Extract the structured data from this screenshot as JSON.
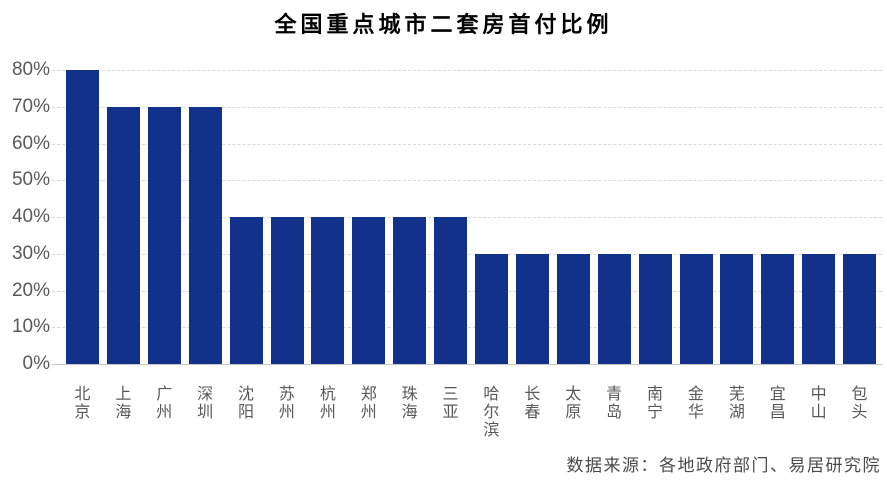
{
  "chart_data": {
    "type": "bar",
    "title": "全国重点城市二套房首付比例",
    "categories": [
      "北京",
      "上海",
      "广州",
      "深圳",
      "沈阳",
      "苏州",
      "杭州",
      "郑州",
      "珠海",
      "三亚",
      "哈尔滨",
      "长春",
      "太原",
      "青岛",
      "南宁",
      "金华",
      "芜湖",
      "宜昌",
      "中山",
      "包头"
    ],
    "values": [
      80,
      70,
      70,
      70,
      40,
      40,
      40,
      40,
      40,
      40,
      30,
      30,
      30,
      30,
      30,
      30,
      30,
      30,
      30,
      30
    ],
    "unit": "%",
    "xlabel": "",
    "ylabel": "",
    "ylim": [
      0,
      80
    ],
    "ytick_values": [
      0,
      10,
      20,
      30,
      40,
      50,
      60,
      70,
      80
    ],
    "ytick_labels": [
      "0%",
      "10%",
      "20%",
      "30%",
      "40%",
      "50%",
      "60%",
      "70%",
      "80%"
    ],
    "grid": "horizontal-dashed",
    "legend": "none",
    "source_note": "数据来源：各地政府部门、易居研究院",
    "colors": {
      "bar": "#12318a",
      "gridline": "#d9d9d9",
      "axis_line": "#c6c6c6",
      "tick_label": "#595959",
      "title": "#000000",
      "source": "#4a4a4a"
    }
  }
}
